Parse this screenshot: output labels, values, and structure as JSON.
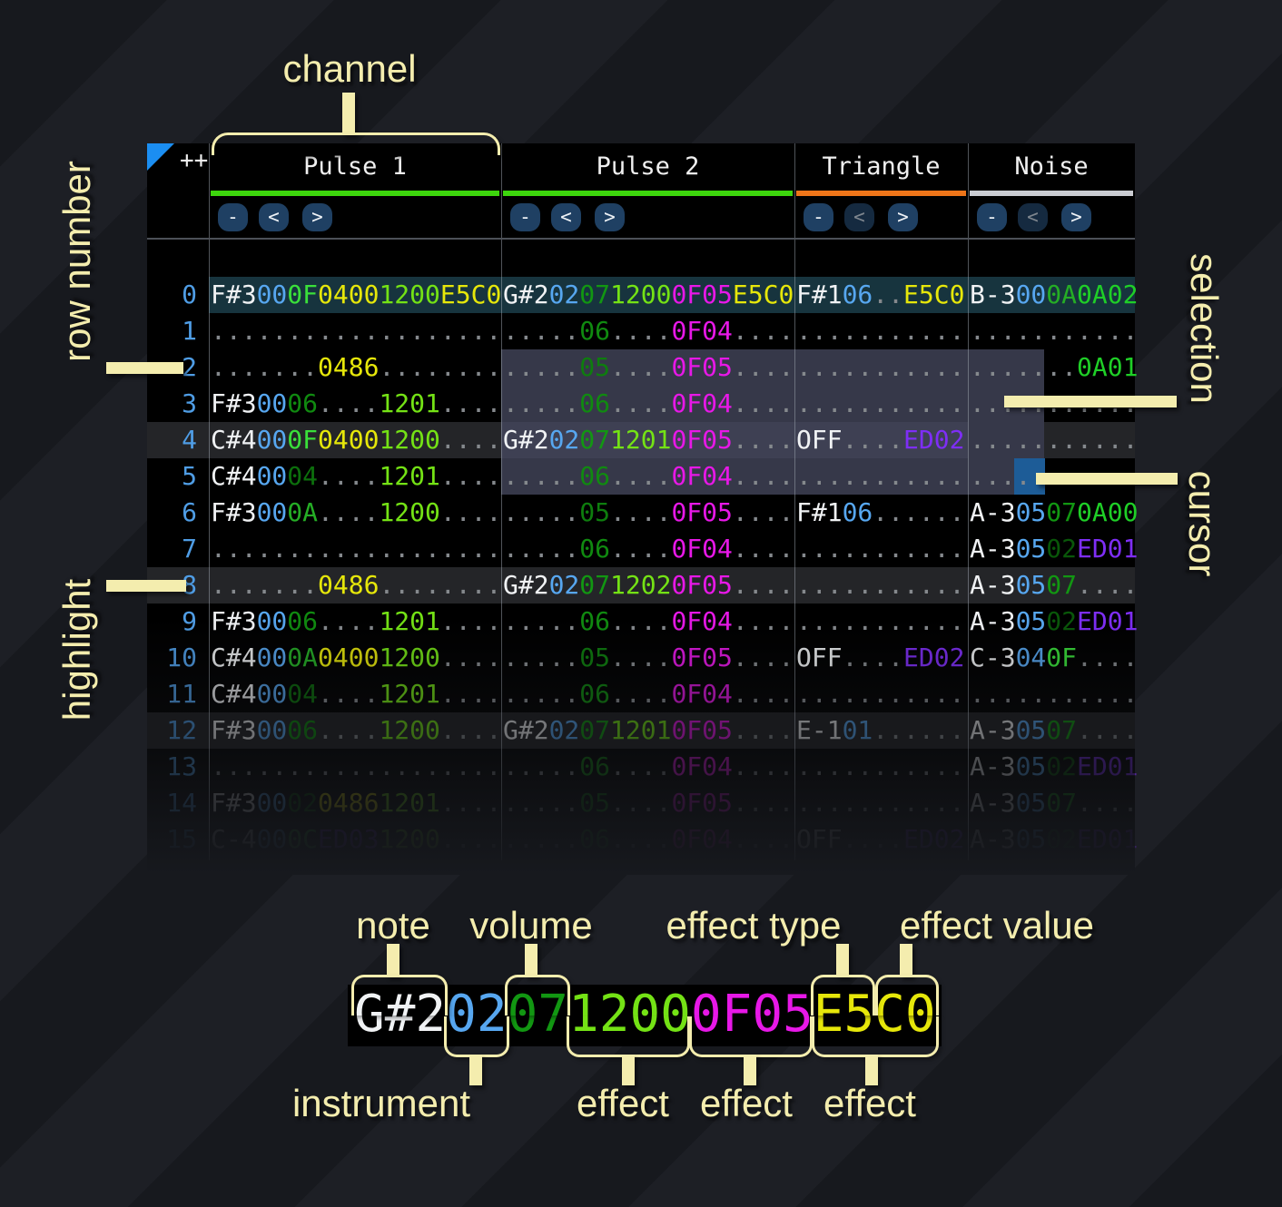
{
  "palette": {
    "w": "#f0f2f4",
    "b": "#57a7f0",
    "d": "#85898d",
    "L": "#74e215",
    "y": "#e6e70a",
    "m": "#e718e7",
    "p": "#7e2ef5",
    "g": "#1fcf27",
    "vF": "#3ae03a",
    "vC": "#2ec62e",
    "vA": "#25ad25",
    "v7": "#129712",
    "v6": "#108a10",
    "v5": "#0e7d0e",
    "v4": "#0c6f0c",
    "v2": "#095709"
  },
  "header": {
    "corner": "++",
    "channels": [
      {
        "name": "Pulse 1",
        "underline": "#3dd60d",
        "buttons": [
          {
            "label": "-",
            "enabled": true
          },
          {
            "label": "<",
            "enabled": true
          },
          {
            "label": ">",
            "enabled": true
          }
        ]
      },
      {
        "name": "Pulse 2",
        "underline": "#3dd60d",
        "buttons": [
          {
            "label": "-",
            "enabled": true
          },
          {
            "label": "<",
            "enabled": true
          },
          {
            "label": ">",
            "enabled": true
          }
        ]
      },
      {
        "name": "Triangle",
        "underline": "#ee7519",
        "buttons": [
          {
            "label": "-",
            "enabled": true
          },
          {
            "label": "<",
            "enabled": false
          },
          {
            "label": ">",
            "enabled": true
          }
        ]
      },
      {
        "name": "Noise",
        "underline": "#caccd2",
        "buttons": [
          {
            "label": "-",
            "enabled": true
          },
          {
            "label": "<",
            "enabled": false
          },
          {
            "label": ">",
            "enabled": true
          }
        ]
      }
    ]
  },
  "rows": [
    {
      "n": "0",
      "bg": "bar",
      "p1": [
        [
          "F#3",
          "w"
        ],
        [
          "00",
          "b"
        ],
        [
          "0F",
          "vF"
        ],
        [
          "0400",
          "y"
        ],
        [
          "1200",
          "L"
        ],
        [
          "E5C0",
          "y"
        ]
      ],
      "p2": [
        [
          "G#2",
          "w"
        ],
        [
          "02",
          "b"
        ],
        [
          "07",
          "v7"
        ],
        [
          "1200",
          "L"
        ],
        [
          "0F05",
          "m"
        ],
        [
          "E5C0",
          "y"
        ]
      ],
      "t": [
        [
          "F#1",
          "w"
        ],
        [
          "06",
          "b"
        ],
        [
          "..",
          "d"
        ],
        [
          "E5C0",
          "y"
        ]
      ],
      "no": [
        [
          "B-3",
          "w"
        ],
        [
          "00",
          "b"
        ],
        [
          "0A",
          "vA"
        ],
        [
          "0A02",
          "g"
        ]
      ]
    },
    {
      "n": "1",
      "p1": [
        [
          "...................",
          "d"
        ]
      ],
      "p2": [
        [
          ".....",
          "d"
        ],
        [
          "06",
          "v6"
        ],
        [
          "....",
          "d"
        ],
        [
          "0F04",
          "m"
        ],
        [
          "....",
          "d"
        ]
      ],
      "t": [
        [
          "...........",
          "d"
        ]
      ],
      "no": [
        [
          "...........",
          "d"
        ]
      ]
    },
    {
      "n": "2",
      "sel": true,
      "p1": [
        [
          ".......",
          "d"
        ],
        [
          "0486",
          "y"
        ],
        [
          "........",
          "d"
        ]
      ],
      "p2": [
        [
          ".....",
          "d"
        ],
        [
          "05",
          "v5"
        ],
        [
          "....",
          "d"
        ],
        [
          "0F05",
          "m"
        ],
        [
          "....",
          "d"
        ]
      ],
      "t": [
        [
          "...........",
          "d"
        ]
      ],
      "no": [
        [
          ".......",
          "d"
        ],
        [
          "0A01",
          "g"
        ]
      ]
    },
    {
      "n": "3",
      "sel": true,
      "p1": [
        [
          "F#3",
          "w"
        ],
        [
          "00",
          "b"
        ],
        [
          "06",
          "v6"
        ],
        [
          "....",
          "d"
        ],
        [
          "1201",
          "L"
        ],
        [
          "....",
          "d"
        ]
      ],
      "p2": [
        [
          ".....",
          "d"
        ],
        [
          "06",
          "v6"
        ],
        [
          "....",
          "d"
        ],
        [
          "0F04",
          "m"
        ],
        [
          "....",
          "d"
        ]
      ],
      "t": [
        [
          "...........",
          "d"
        ]
      ],
      "no": [
        [
          "...........",
          "d"
        ]
      ]
    },
    {
      "n": "4",
      "bg": "beat",
      "sel": true,
      "p1": [
        [
          "C#4",
          "w"
        ],
        [
          "00",
          "b"
        ],
        [
          "0F",
          "vF"
        ],
        [
          "0400",
          "y"
        ],
        [
          "1200",
          "L"
        ],
        [
          "....",
          "d"
        ]
      ],
      "p2": [
        [
          "G#2",
          "w"
        ],
        [
          "02",
          "b"
        ],
        [
          "07",
          "v7"
        ],
        [
          "1201",
          "L"
        ],
        [
          "0F05",
          "m"
        ],
        [
          "....",
          "d"
        ]
      ],
      "t": [
        [
          "OFF",
          "w"
        ],
        [
          "....",
          "d"
        ],
        [
          "ED02",
          "p"
        ]
      ],
      "no": [
        [
          "...........",
          "d"
        ]
      ]
    },
    {
      "n": "5",
      "sel": true,
      "cur": true,
      "p1": [
        [
          "C#4",
          "w"
        ],
        [
          "00",
          "b"
        ],
        [
          "04",
          "v4"
        ],
        [
          "....",
          "d"
        ],
        [
          "1201",
          "L"
        ],
        [
          "....",
          "d"
        ]
      ],
      "p2": [
        [
          ".....",
          "d"
        ],
        [
          "06",
          "v6"
        ],
        [
          "....",
          "d"
        ],
        [
          "0F04",
          "m"
        ],
        [
          "....",
          "d"
        ]
      ],
      "t": [
        [
          "...........",
          "d"
        ]
      ],
      "no": [
        [
          "...........",
          "d"
        ]
      ]
    },
    {
      "n": "6",
      "p1": [
        [
          "F#3",
          "w"
        ],
        [
          "00",
          "b"
        ],
        [
          "0A",
          "vA"
        ],
        [
          "....",
          "d"
        ],
        [
          "1200",
          "L"
        ],
        [
          "....",
          "d"
        ]
      ],
      "p2": [
        [
          ".....",
          "d"
        ],
        [
          "05",
          "v5"
        ],
        [
          "....",
          "d"
        ],
        [
          "0F05",
          "m"
        ],
        [
          "....",
          "d"
        ]
      ],
      "t": [
        [
          "F#1",
          "w"
        ],
        [
          "06",
          "b"
        ],
        [
          "......",
          "d"
        ]
      ],
      "no": [
        [
          "A-3",
          "w"
        ],
        [
          "05",
          "b"
        ],
        [
          "07",
          "v7"
        ],
        [
          "0A00",
          "g"
        ]
      ]
    },
    {
      "n": "7",
      "p1": [
        [
          "...................",
          "d"
        ]
      ],
      "p2": [
        [
          ".....",
          "d"
        ],
        [
          "06",
          "v6"
        ],
        [
          "....",
          "d"
        ],
        [
          "0F04",
          "m"
        ],
        [
          "....",
          "d"
        ]
      ],
      "t": [
        [
          "...........",
          "d"
        ]
      ],
      "no": [
        [
          "A-3",
          "w"
        ],
        [
          "05",
          "b"
        ],
        [
          "02",
          "v2"
        ],
        [
          "ED01",
          "p"
        ]
      ]
    },
    {
      "n": "8",
      "bg": "beat",
      "p1": [
        [
          ".......",
          "d"
        ],
        [
          "0486",
          "y"
        ],
        [
          "........",
          "d"
        ]
      ],
      "p2": [
        [
          "G#2",
          "w"
        ],
        [
          "02",
          "b"
        ],
        [
          "07",
          "v7"
        ],
        [
          "1202",
          "L"
        ],
        [
          "0F05",
          "m"
        ],
        [
          "....",
          "d"
        ]
      ],
      "t": [
        [
          "...........",
          "d"
        ]
      ],
      "no": [
        [
          "A-3",
          "w"
        ],
        [
          "05",
          "b"
        ],
        [
          "07",
          "v7"
        ],
        [
          "....",
          "d"
        ]
      ]
    },
    {
      "n": "9",
      "p1": [
        [
          "F#3",
          "w"
        ],
        [
          "00",
          "b"
        ],
        [
          "06",
          "v6"
        ],
        [
          "....",
          "d"
        ],
        [
          "1201",
          "L"
        ],
        [
          "....",
          "d"
        ]
      ],
      "p2": [
        [
          ".....",
          "d"
        ],
        [
          "06",
          "v6"
        ],
        [
          "....",
          "d"
        ],
        [
          "0F04",
          "m"
        ],
        [
          "....",
          "d"
        ]
      ],
      "t": [
        [
          "...........",
          "d"
        ]
      ],
      "no": [
        [
          "A-3",
          "w"
        ],
        [
          "05",
          "b"
        ],
        [
          "02",
          "v2"
        ],
        [
          "ED01",
          "p"
        ]
      ]
    },
    {
      "n": "10",
      "op": 0.92,
      "p1": [
        [
          "C#4",
          "w"
        ],
        [
          "00",
          "b"
        ],
        [
          "0A",
          "vA"
        ],
        [
          "0400",
          "y"
        ],
        [
          "1200",
          "L"
        ],
        [
          "....",
          "d"
        ]
      ],
      "p2": [
        [
          ".....",
          "d"
        ],
        [
          "05",
          "v5"
        ],
        [
          "....",
          "d"
        ],
        [
          "0F05",
          "m"
        ],
        [
          "....",
          "d"
        ]
      ],
      "t": [
        [
          "OFF",
          "w"
        ],
        [
          "....",
          "d"
        ],
        [
          "ED02",
          "p"
        ]
      ],
      "no": [
        [
          "C-3",
          "w"
        ],
        [
          "04",
          "b"
        ],
        [
          "0F",
          "vF"
        ],
        [
          "....",
          "d"
        ]
      ]
    },
    {
      "n": "11",
      "op": 0.8,
      "p1": [
        [
          "C#4",
          "w"
        ],
        [
          "00",
          "b"
        ],
        [
          "04",
          "v4"
        ],
        [
          "....",
          "d"
        ],
        [
          "1201",
          "L"
        ],
        [
          "....",
          "d"
        ]
      ],
      "p2": [
        [
          ".....",
          "d"
        ],
        [
          "06",
          "v6"
        ],
        [
          "....",
          "d"
        ],
        [
          "0F04",
          "m"
        ],
        [
          "....",
          "d"
        ]
      ],
      "t": [
        [
          "...........",
          "d"
        ]
      ],
      "no": [
        [
          "...........",
          "d"
        ]
      ]
    },
    {
      "n": "12",
      "bg": "beat",
      "op": 0.68,
      "p1": [
        [
          "F#3",
          "w"
        ],
        [
          "00",
          "b"
        ],
        [
          "06",
          "v6"
        ],
        [
          "....",
          "d"
        ],
        [
          "1200",
          "L"
        ],
        [
          "....",
          "d"
        ]
      ],
      "p2": [
        [
          "G#2",
          "w"
        ],
        [
          "02",
          "b"
        ],
        [
          "07",
          "v7"
        ],
        [
          "1201",
          "L"
        ],
        [
          "0F05",
          "m"
        ],
        [
          "....",
          "d"
        ]
      ],
      "t": [
        [
          "E-1",
          "w"
        ],
        [
          "01",
          "b"
        ],
        [
          "......",
          "d"
        ]
      ],
      "no": [
        [
          "A-3",
          "w"
        ],
        [
          "05",
          "b"
        ],
        [
          "07",
          "v7"
        ],
        [
          "....",
          "d"
        ]
      ]
    },
    {
      "n": "13",
      "op": 0.52,
      "p1": [
        [
          "...................",
          "d"
        ]
      ],
      "p2": [
        [
          ".....",
          "d"
        ],
        [
          "06",
          "v6"
        ],
        [
          "....",
          "d"
        ],
        [
          "0F04",
          "m"
        ],
        [
          "....",
          "d"
        ]
      ],
      "t": [
        [
          "...........",
          "d"
        ]
      ],
      "no": [
        [
          "A-3",
          "w"
        ],
        [
          "05",
          "b"
        ],
        [
          "02",
          "v2"
        ],
        [
          "ED01",
          "p"
        ]
      ]
    },
    {
      "n": "14",
      "op": 0.4,
      "p1": [
        [
          "F#3",
          "w"
        ],
        [
          "00",
          "b"
        ],
        [
          "02",
          "v2"
        ],
        [
          "0486",
          "y"
        ],
        [
          "1201",
          "L"
        ],
        [
          "....",
          "d"
        ]
      ],
      "p2": [
        [
          ".....",
          "d"
        ],
        [
          "05",
          "v5"
        ],
        [
          "....",
          "d"
        ],
        [
          "0F05",
          "m"
        ],
        [
          "....",
          "d"
        ]
      ],
      "t": [
        [
          "...........",
          "d"
        ]
      ],
      "no": [
        [
          "A-3",
          "w"
        ],
        [
          "05",
          "b"
        ],
        [
          "07",
          "v7"
        ],
        [
          "....",
          "d"
        ]
      ]
    },
    {
      "n": "15",
      "op": 0.26,
      "p1": [
        [
          "C-4",
          "w"
        ],
        [
          "00",
          "b"
        ],
        [
          "0C",
          "vC"
        ],
        [
          "ED03",
          "p"
        ],
        [
          "1200",
          "L"
        ],
        [
          "....",
          "d"
        ]
      ],
      "p2": [
        [
          ".....",
          "d"
        ],
        [
          "06",
          "v6"
        ],
        [
          "....",
          "d"
        ],
        [
          "0F04",
          "m"
        ],
        [
          "....",
          "d"
        ]
      ],
      "t": [
        [
          "OFF",
          "w"
        ],
        [
          "....",
          "d"
        ],
        [
          "ED02",
          "p"
        ]
      ],
      "no": [
        [
          "A-3",
          "w"
        ],
        [
          "05",
          "b"
        ],
        [
          "02",
          "v2"
        ],
        [
          "ED01",
          "p"
        ]
      ]
    }
  ],
  "annotations": {
    "channel": "channel",
    "row_number": "row number",
    "selection": "selection",
    "cursor": "cursor",
    "highlight": "highlight"
  },
  "example": {
    "segments": [
      [
        "G#2",
        "w"
      ],
      [
        "02",
        "b"
      ],
      [
        "07",
        "v7"
      ],
      [
        "1200",
        "L"
      ],
      [
        "0F05",
        "m"
      ],
      [
        "E5C0",
        "y"
      ]
    ],
    "labels": {
      "note": "note",
      "volume": "volume",
      "effect_type": "effect type",
      "effect_value": "effect value",
      "instrument": "instrument",
      "effect": "effect"
    }
  }
}
